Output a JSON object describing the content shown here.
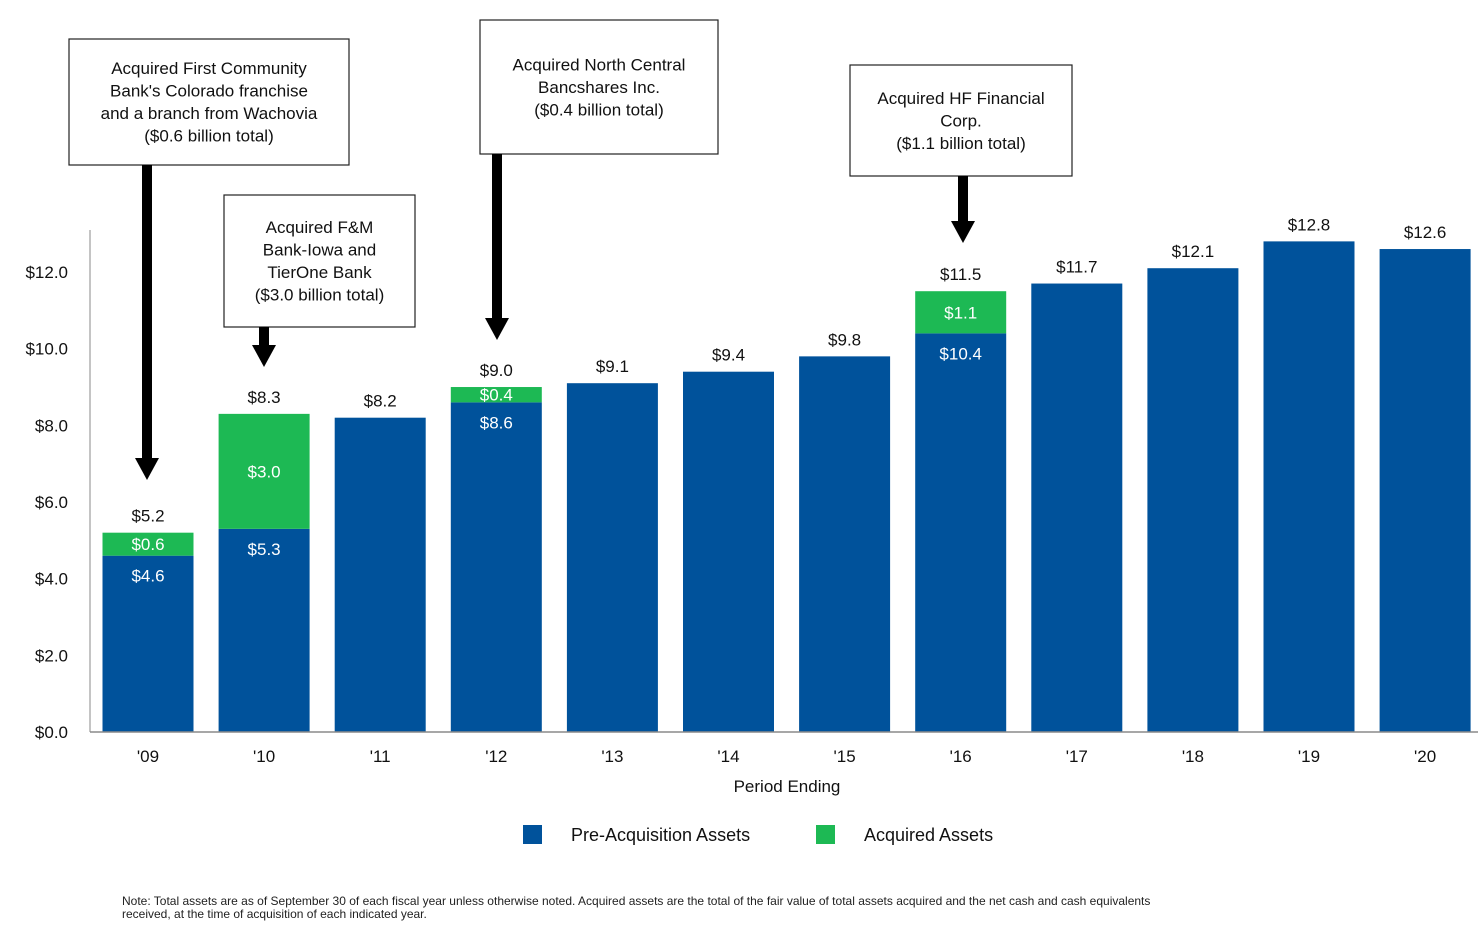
{
  "chart_data": {
    "type": "bar",
    "stacked": true,
    "categories": [
      "'09",
      "'10",
      "'11",
      "'12",
      "'13",
      "'14",
      "'15",
      "'16",
      "'17",
      "'18",
      "'19",
      "'20"
    ],
    "series": [
      {
        "name": "Pre-Acquisition Assets",
        "color": "#00529B",
        "values": [
          4.6,
          5.3,
          8.2,
          8.6,
          9.1,
          9.4,
          9.8,
          10.4,
          11.7,
          12.1,
          12.8,
          12.6
        ],
        "labels": [
          "$4.6",
          "$5.3",
          null,
          "$8.6",
          null,
          null,
          null,
          "$10.4",
          null,
          null,
          null,
          null
        ]
      },
      {
        "name": "Acquired Assets",
        "color": "#1DB954",
        "values": [
          0.6,
          3.0,
          0,
          0.4,
          0,
          0,
          0,
          1.1,
          0,
          0,
          0,
          0
        ],
        "labels": [
          "$0.6",
          "$3.0",
          null,
          "$0.4",
          null,
          null,
          null,
          "$1.1",
          null,
          null,
          null,
          null
        ]
      }
    ],
    "totals": [
      "$5.2",
      "$8.3",
      "$8.2",
      "$9.0",
      "$9.1",
      "$9.4",
      "$9.8",
      "$11.5",
      "$11.7",
      "$12.1",
      "$12.8",
      "$12.6"
    ],
    "xlabel": "Period Ending",
    "ylabel": "",
    "ylim": [
      0,
      13
    ],
    "yticks": [
      0,
      2,
      4,
      6,
      8,
      10,
      12
    ],
    "ytick_labels": [
      "$0.0",
      "$2.0",
      "$4.0",
      "$6.0",
      "$8.0",
      "$10.0",
      "$12.0"
    ],
    "legend": [
      "Pre-Acquisition Assets",
      "Acquired Assets"
    ],
    "legend_position": "bottom",
    "annotations": [
      {
        "category_index": 0,
        "lines": [
          "Acquired First Community",
          "Bank's Colorado franchise",
          "and a branch from Wachovia",
          "($0.6 billion total)"
        ]
      },
      {
        "category_index": 1,
        "lines": [
          "Acquired F&M",
          "Bank-Iowa and",
          "TierOne Bank",
          "($3.0 billion total)"
        ]
      },
      {
        "category_index": 3,
        "lines": [
          "Acquired North Central",
          "Bancshares Inc.",
          "($0.4 billion total)"
        ]
      },
      {
        "category_index": 7,
        "lines": [
          "Acquired HF Financial",
          "Corp.",
          "($1.1 billion total)"
        ]
      }
    ]
  },
  "note": {
    "line1": "Note: Total assets are as of September 30 of each fiscal year unless otherwise noted. Acquired assets are the total of the fair value of total assets acquired and the net cash and cash equivalents",
    "line2": "received, at the time of acquisition of each indicated year."
  }
}
